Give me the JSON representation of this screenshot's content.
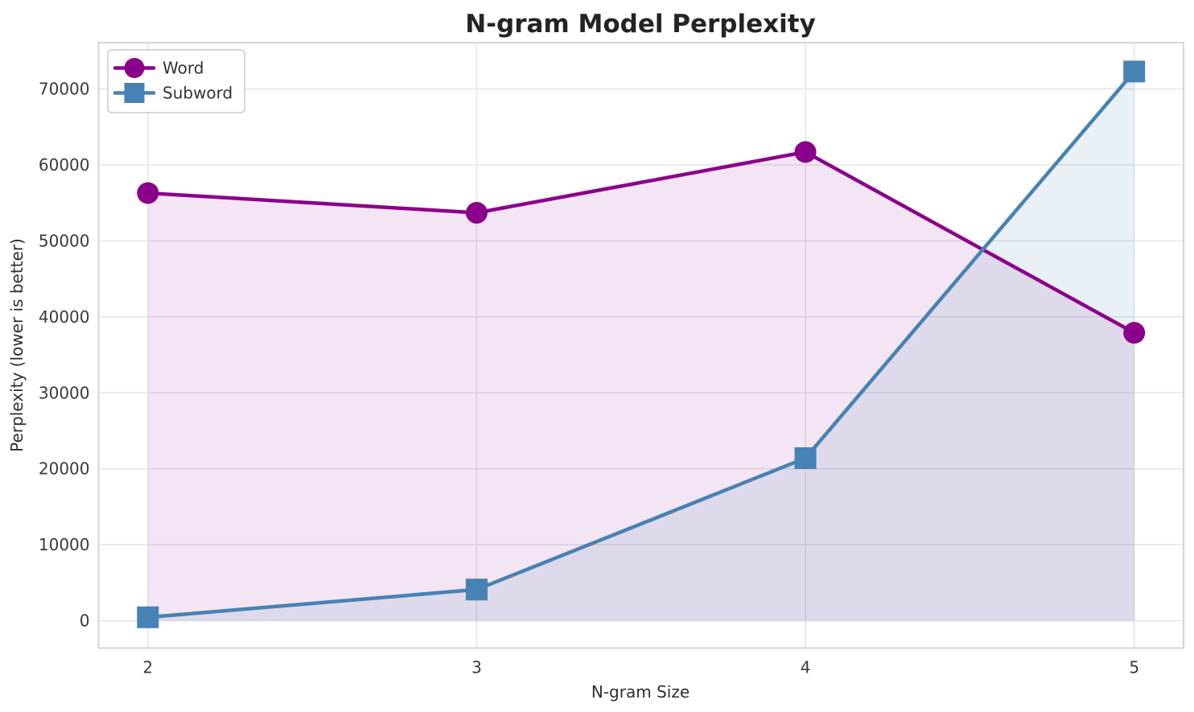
{
  "chart_data": {
    "type": "line",
    "title": "N-gram Model Perplexity",
    "xlabel": "N-gram Size",
    "ylabel": "Perplexity (lower is better)",
    "x": [
      2,
      3,
      4,
      5
    ],
    "xticks": [
      "2",
      "3",
      "4",
      "5"
    ],
    "yticks": [
      0,
      10000,
      20000,
      30000,
      40000,
      50000,
      60000,
      70000
    ],
    "xlim": [
      1.85,
      5.15
    ],
    "ylim": [
      -3600,
      76100
    ],
    "grid": true,
    "legend_position": "upper left",
    "fill_baseline": 0,
    "series": [
      {
        "name": "Word",
        "marker": "circle",
        "color": "#8B008B",
        "fill_color": "rgba(139,0,139,0.10)",
        "values": [
          56300,
          53700,
          61700,
          37900
        ]
      },
      {
        "name": "Subword",
        "marker": "square",
        "color": "#4682B4",
        "fill_color": "rgba(70,130,180,0.12)",
        "values": [
          450,
          4100,
          21400,
          72300
        ]
      }
    ],
    "style": {
      "grid_color": "#E6E6E6",
      "spine_color": "#D6D6D6",
      "background": "#FFFFFF",
      "line_width": 4.5,
      "marker_size": 27
    }
  }
}
